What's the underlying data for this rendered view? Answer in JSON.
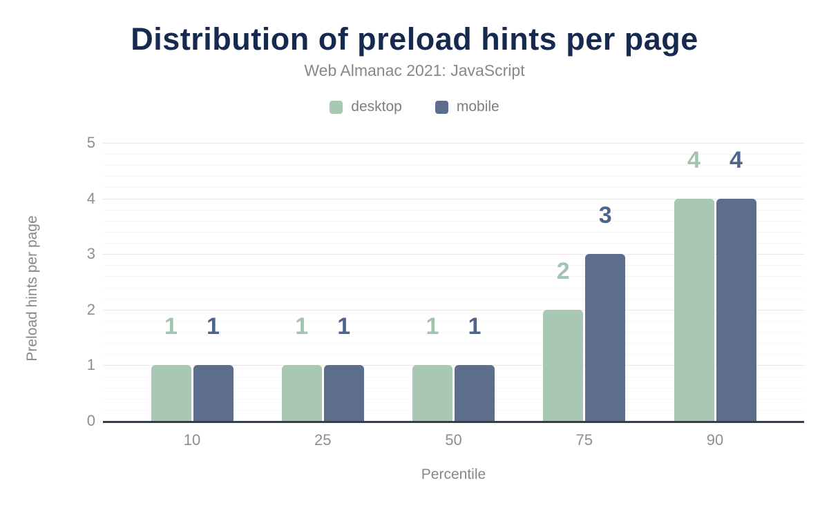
{
  "chart_data": {
    "type": "bar",
    "title": "Distribution of preload hints per page",
    "subtitle": "Web Almanac 2021: JavaScript",
    "xlabel": "Percentile",
    "ylabel": "Preload hints per page",
    "categories": [
      "10",
      "25",
      "50",
      "75",
      "90"
    ],
    "series": [
      {
        "name": "desktop",
        "color": "#a8c8b4",
        "label_color": "#a0c5af",
        "values": [
          1,
          1,
          1,
          2,
          4
        ]
      },
      {
        "name": "mobile",
        "color": "#5d6e8d",
        "label_color": "#4f648a",
        "values": [
          1,
          1,
          1,
          3,
          4
        ]
      }
    ],
    "ylim": [
      0,
      5
    ],
    "yticks": [
      0,
      1,
      2,
      3,
      4,
      5
    ],
    "grid": {
      "major_step": 1,
      "minor_step": 0.2,
      "orientation": "horizontal"
    },
    "legend_position": "top",
    "data_labels": true
  },
  "colors": {
    "title": "#152a4e",
    "subtitle": "#85888d",
    "axis_line": "#353d48",
    "tick_label": "#8b8e94",
    "grid_major": "#e8e8e8",
    "grid_minor": "#f6f6f6",
    "background": "#ffffff"
  }
}
